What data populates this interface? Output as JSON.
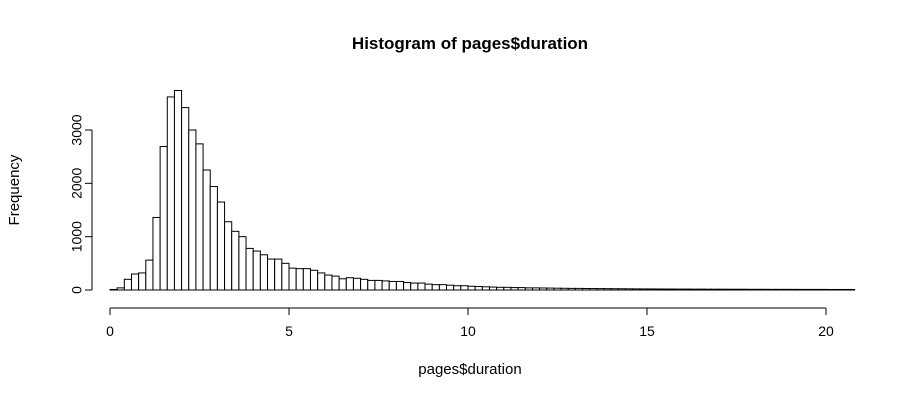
{
  "chart_data": {
    "type": "bar",
    "title": "Histogram of pages$duration",
    "xlabel": "pages$duration",
    "ylabel": "Frequency",
    "xlim": [
      0,
      20.8
    ],
    "ylim": [
      0,
      3800
    ],
    "bin_width": 0.2,
    "x_ticks": [
      0,
      5,
      10,
      15,
      20
    ],
    "y_ticks": [
      0,
      1000,
      2000,
      3000
    ],
    "bin_starts": [
      0.0,
      0.2,
      0.4,
      0.6,
      0.8,
      1.0,
      1.2,
      1.4,
      1.6,
      1.8,
      2.0,
      2.2,
      2.4,
      2.6,
      2.8,
      3.0,
      3.2,
      3.4,
      3.6,
      3.8,
      4.0,
      4.2,
      4.4,
      4.6,
      4.8,
      5.0,
      5.2,
      5.4,
      5.6,
      5.8,
      6.0,
      6.2,
      6.4,
      6.6,
      6.8,
      7.0,
      7.2,
      7.4,
      7.6,
      7.8,
      8.0,
      8.2,
      8.4,
      8.6,
      8.8,
      9.0,
      9.2,
      9.4,
      9.6,
      9.8,
      10.0,
      10.2,
      10.4,
      10.6,
      10.8,
      11.0,
      11.2,
      11.4,
      11.6,
      11.8,
      12.0,
      12.2,
      12.4,
      12.6,
      12.8,
      13.0,
      13.2,
      13.4,
      13.6,
      13.8,
      14.0,
      14.2,
      14.4,
      14.6,
      14.8,
      15.0,
      15.2,
      15.4,
      15.6,
      15.8,
      16.0,
      16.2,
      16.4,
      16.6,
      16.8,
      17.0,
      17.2,
      17.4,
      17.6,
      17.8,
      18.0,
      18.2,
      18.4,
      18.6,
      18.8,
      19.0,
      19.2,
      19.4,
      19.6,
      19.8,
      20.0,
      20.2,
      20.4,
      20.6
    ],
    "values": [
      10,
      40,
      200,
      300,
      320,
      560,
      1360,
      2690,
      3620,
      3740,
      3420,
      3000,
      2740,
      2250,
      1940,
      1650,
      1280,
      1100,
      1000,
      780,
      730,
      660,
      580,
      580,
      500,
      410,
      400,
      400,
      370,
      320,
      280,
      260,
      210,
      230,
      220,
      200,
      180,
      180,
      170,
      160,
      160,
      140,
      130,
      130,
      110,
      100,
      100,
      90,
      80,
      80,
      70,
      65,
      60,
      55,
      50,
      50,
      45,
      45,
      40,
      40,
      38,
      36,
      34,
      32,
      30,
      30,
      28,
      27,
      26,
      25,
      24,
      23,
      22,
      21,
      20,
      20,
      19,
      18,
      18,
      17,
      17,
      16,
      16,
      15,
      15,
      15,
      14,
      14,
      14,
      13,
      13,
      13,
      12,
      12,
      12,
      12,
      11,
      11,
      11,
      11,
      10,
      10,
      10,
      10
    ],
    "grid": false,
    "legend": "none"
  }
}
